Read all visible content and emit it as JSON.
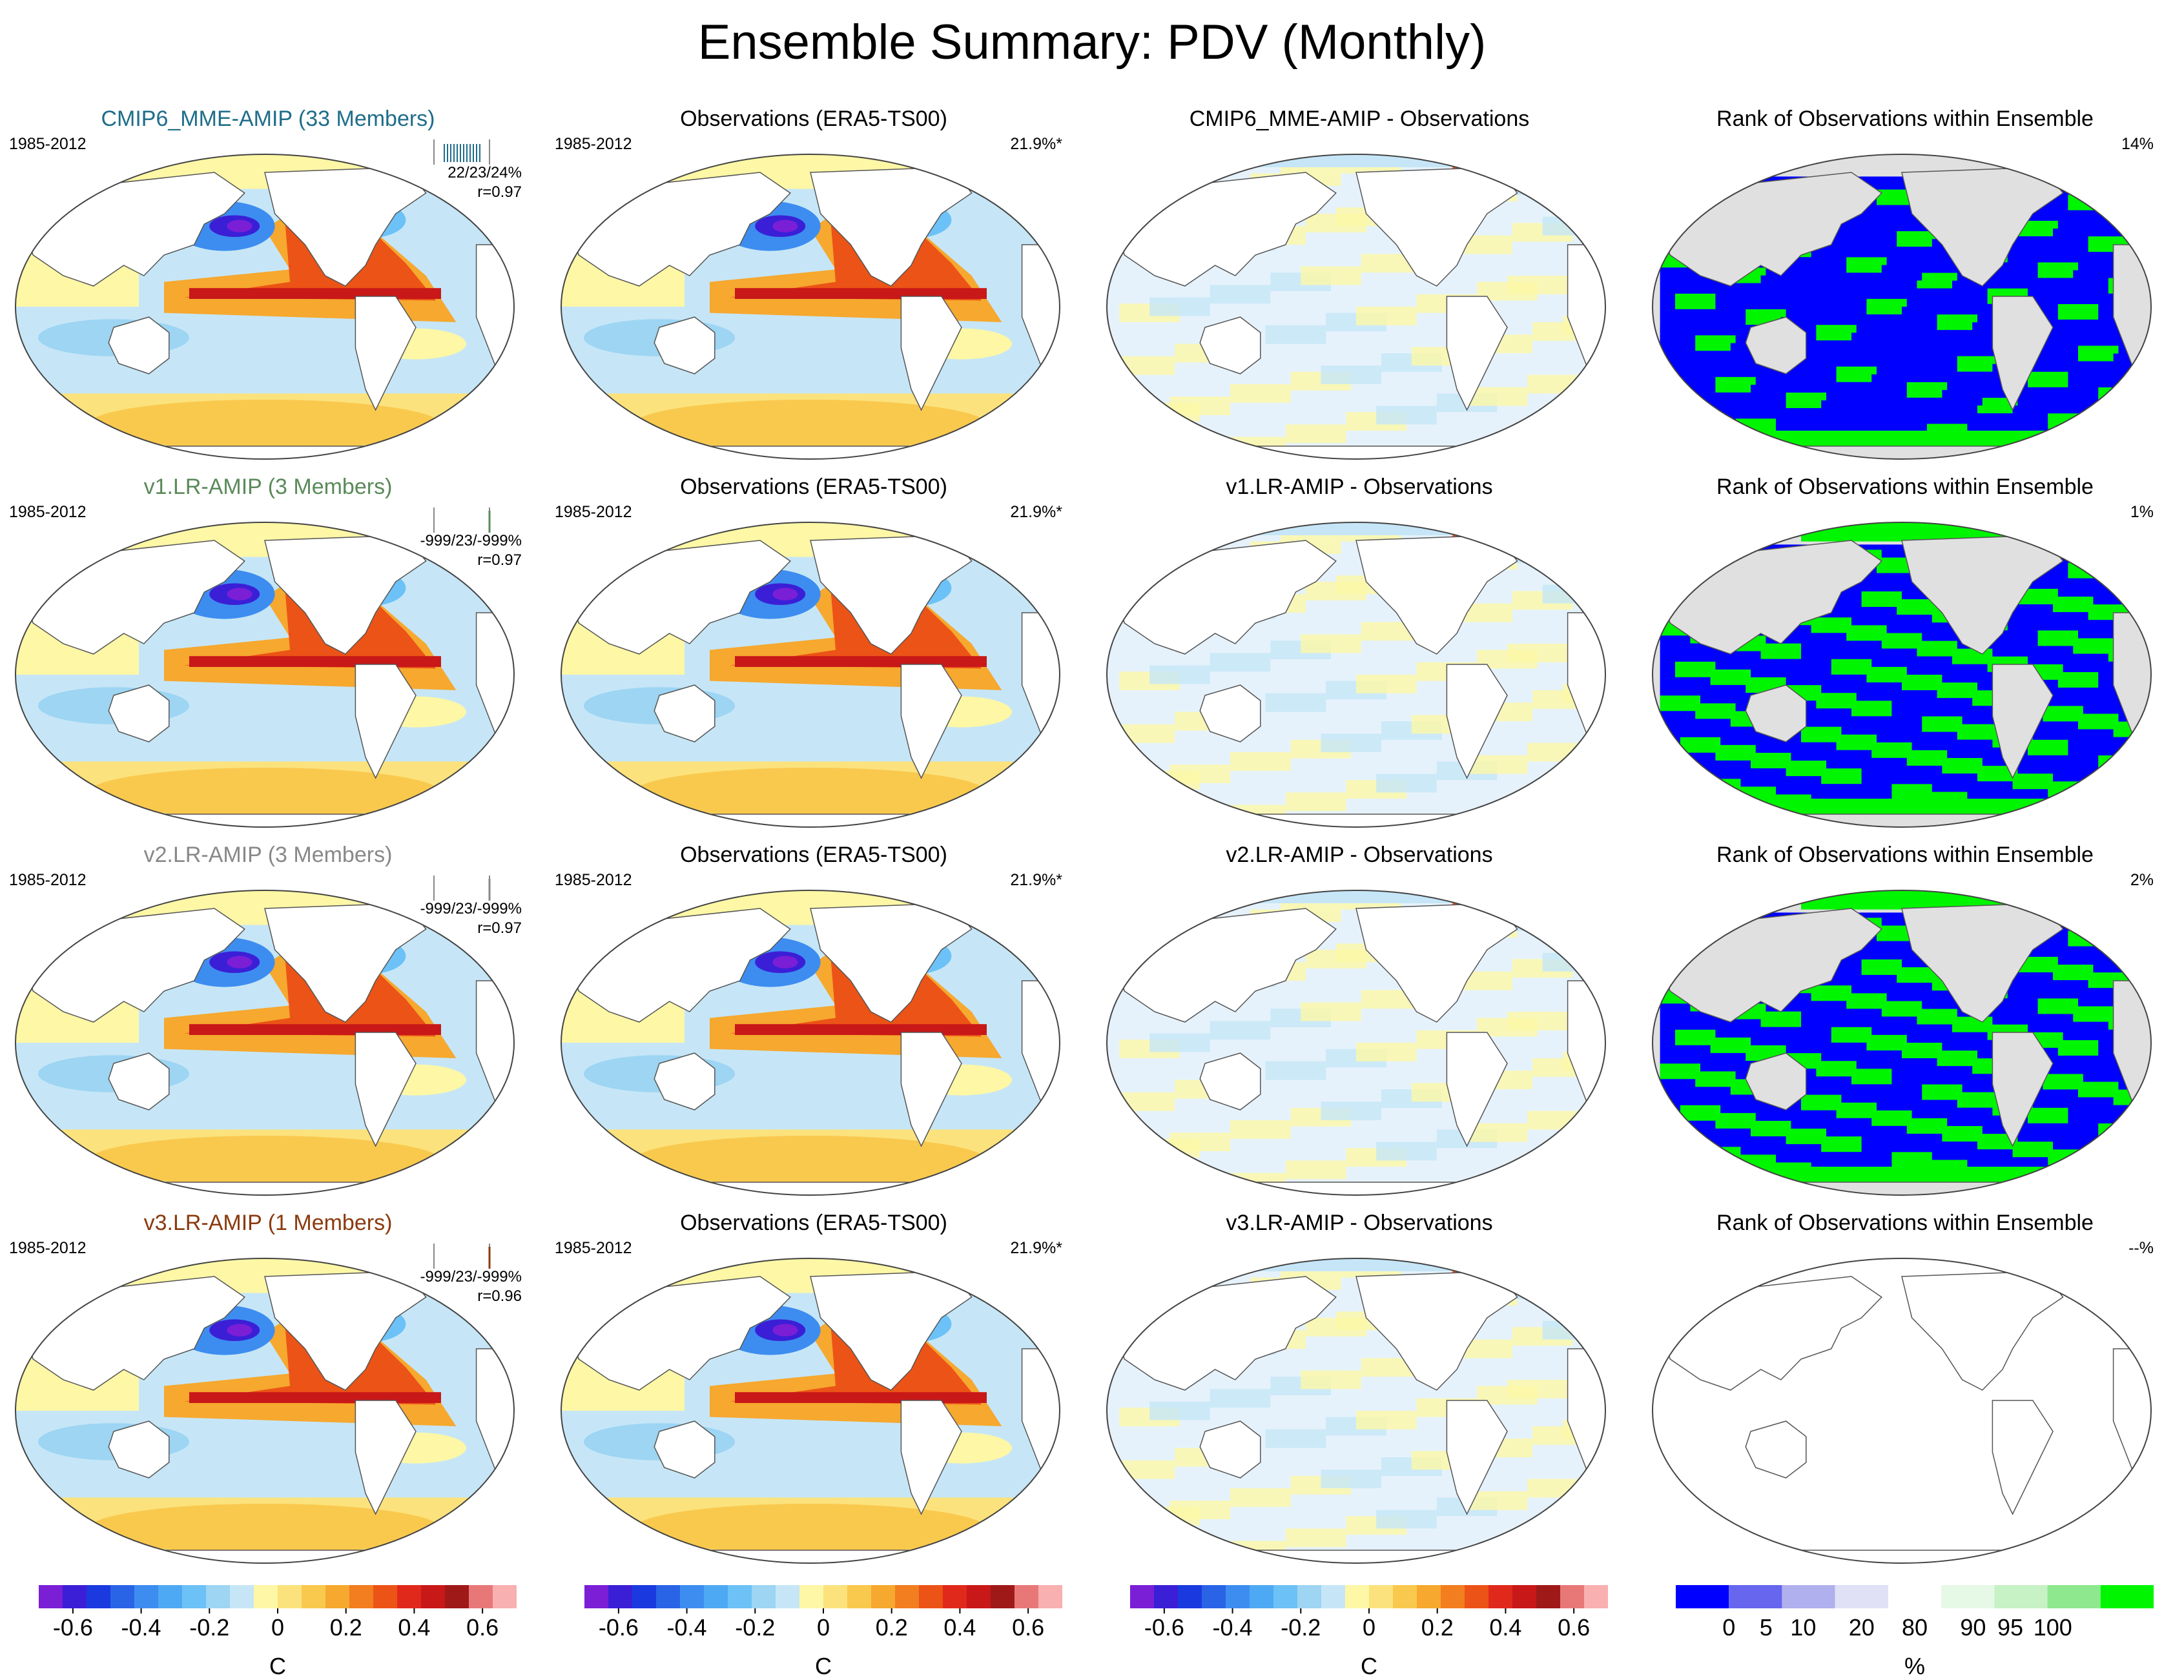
{
  "title": "Ensemble Summary: PDV (Monthly)",
  "colors": {
    "mme": "#1f6d8a",
    "v1": "#5a8a5a",
    "v2": "#888888",
    "v3": "#8b3a0e",
    "land": "#ffffff",
    "rank_land": "#e0e0e0"
  },
  "rows": [
    {
      "model_title": "CMIP6_MME-AMIP (33 Members)",
      "model_period": "1985-2012",
      "model_stats": "22/23/24%",
      "model_r": "r=0.97",
      "obs_title": "Observations (ERA5-TS00)",
      "obs_period": "1985-2012",
      "obs_pct": "21.9%*",
      "diff_title": "CMIP6_MME-AMIP - Observations",
      "rank_title": "Rank of Observations within Ensemble",
      "rank_pct": "14%"
    },
    {
      "model_title": "v1.LR-AMIP (3 Members)",
      "model_period": "1985-2012",
      "model_stats": "-999/23/-999%",
      "model_r": "r=0.97",
      "obs_title": "Observations (ERA5-TS00)",
      "obs_period": "1985-2012",
      "obs_pct": "21.9%*",
      "diff_title": "v1.LR-AMIP - Observations",
      "rank_title": "Rank of Observations within Ensemble",
      "rank_pct": "1%"
    },
    {
      "model_title": "v2.LR-AMIP (3 Members)",
      "model_period": "1985-2012",
      "model_stats": "-999/23/-999%",
      "model_r": "r=0.97",
      "obs_title": "Observations (ERA5-TS00)",
      "obs_period": "1985-2012",
      "obs_pct": "21.9%*",
      "diff_title": "v2.LR-AMIP - Observations",
      "rank_title": "Rank of Observations within Ensemble",
      "rank_pct": "2%"
    },
    {
      "model_title": "v3.LR-AMIP (1 Members)",
      "model_period": "1985-2012",
      "model_stats": "-999/23/-999%",
      "model_r": "r=0.96",
      "obs_title": "Observations (ERA5-TS00)",
      "obs_period": "1985-2012",
      "obs_pct": "21.9%*",
      "diff_title": "v3.LR-AMIP - Observations",
      "rank_title": "Rank of Observations within Ensemble",
      "rank_pct": "--%"
    }
  ],
  "chart_data": {
    "type": "heatmap",
    "title": "Ensemble Summary: PDV (Monthly)",
    "temperature_colorbar": {
      "unit": "C",
      "range": [
        -0.7,
        0.7
      ],
      "tick_labels": [
        "-0.6",
        "-0.4",
        "-0.2",
        "0",
        "0.2",
        "0.4",
        "0.6"
      ],
      "tick_values": [
        -0.6,
        -0.4,
        -0.2,
        0,
        0.2,
        0.4,
        0.6
      ],
      "colors": [
        "#7a1fd6",
        "#3b1fd6",
        "#1a3ae0",
        "#2a64e6",
        "#3d8df0",
        "#4ea9f4",
        "#6cc2f6",
        "#9dd5f3",
        "#c6e6f7",
        "#fdf7a6",
        "#fbe27c",
        "#f9c94e",
        "#f6a82f",
        "#f27e1f",
        "#ec5316",
        "#e0291a",
        "#c81818",
        "#a01919",
        "#e87878",
        "#f9b0b0"
      ]
    },
    "rank_colorbar": {
      "unit": "%",
      "tick_labels": [
        "0",
        "5",
        "10",
        "20",
        "80",
        "90",
        "95",
        "100"
      ],
      "tick_values": [
        0,
        5,
        10,
        20,
        80,
        90,
        95,
        100
      ],
      "colors": [
        "#0000ff",
        "#6666ee",
        "#b0b0ee",
        "#e0e0f6",
        "#ffffff",
        "#e6f8e6",
        "#c6f2c6",
        "#8ee88e",
        "#00f500"
      ]
    }
  }
}
